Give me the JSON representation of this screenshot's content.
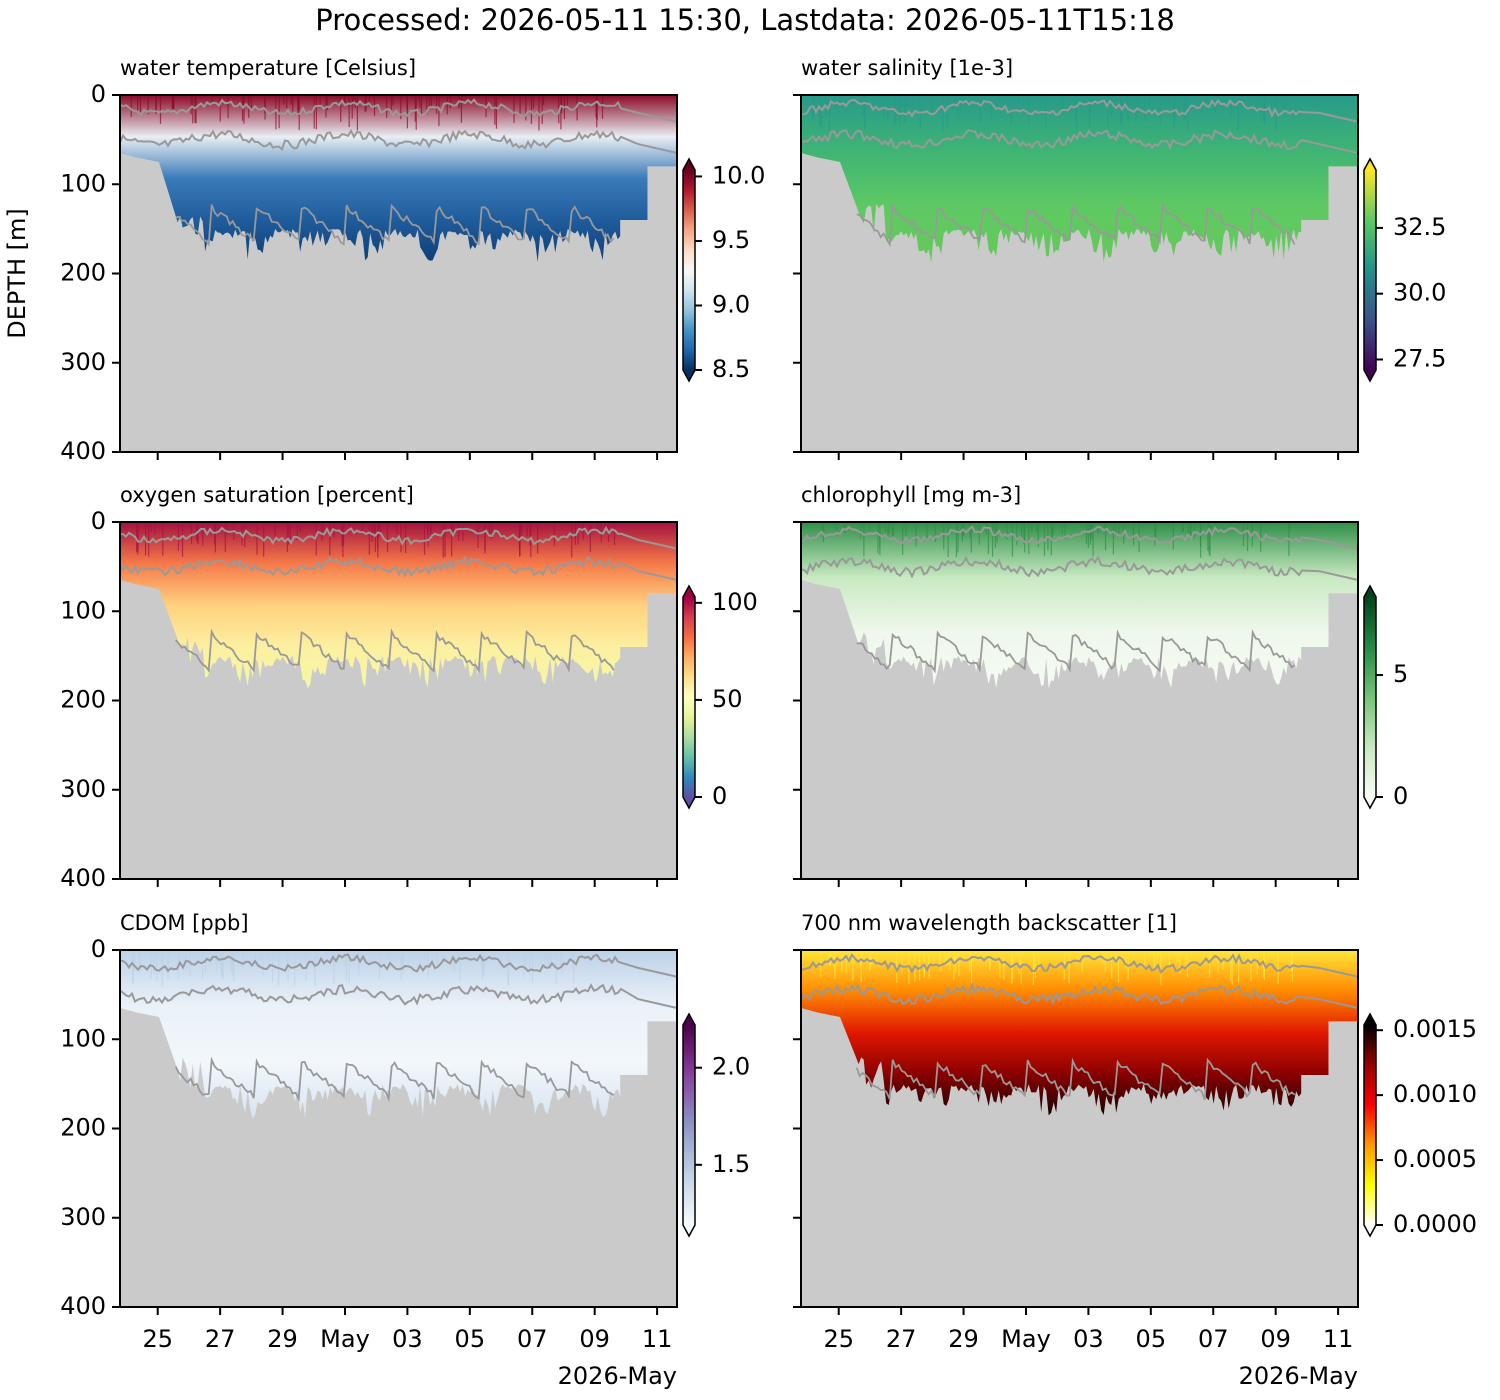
{
  "title": "Processed: 2026-05-11 15:30, Lastdata: 2026-05-11T15:18",
  "chart_data": [
    {
      "type": "heatmap",
      "title": "water temperature [Celsius]",
      "ylabel": "DEPTH [m]",
      "cmap": "RdBu_r",
      "extend": "both",
      "xlim": [
        "2026-04-23T19:00",
        "2026-05-11T15:18"
      ],
      "xticks": [
        "2026-04-25T00:00",
        "2026-04-27T00:00",
        "2026-04-29T00:00",
        "2026-05-01T00:00",
        "2026-05-03T00:00",
        "2026-05-05T00:00",
        "2026-05-07T00:00",
        "2026-05-09T00:00",
        "2026-05-11T00:00"
      ],
      "ylim": [
        0,
        400
      ],
      "y_inverted": true,
      "yticks": [
        0,
        100,
        200,
        300,
        400
      ],
      "yticklabels": true,
      "clim": [
        8.5,
        10.05
      ],
      "cticks": [
        8.5,
        {
          "value": 9,
          "label": "9.0"
        },
        9.5,
        {
          "value": 10,
          "label": "10.0"
        }
      ]
    },
    {
      "type": "heatmap",
      "title": "water salinity [1e-3]",
      "cmap": "viridis",
      "extend": "both",
      "xlim": [
        "2026-04-23T19:00",
        "2026-05-11T15:18"
      ],
      "xticks": [
        "2026-04-25T00:00",
        "2026-04-27T00:00",
        "2026-04-29T00:00",
        "2026-05-01T00:00",
        "2026-05-03T00:00",
        "2026-05-05T00:00",
        "2026-05-07T00:00",
        "2026-05-09T00:00",
        "2026-05-11T00:00"
      ],
      "ylim": [
        0,
        400
      ],
      "y_inverted": true,
      "yticks": [
        0,
        100,
        200,
        300,
        400
      ],
      "yticklabels": false,
      "clim": [
        27.1,
        34.7
      ],
      "cticks": [
        27.5,
        {
          "value": 30,
          "label": "30.0"
        },
        32.5
      ]
    },
    {
      "type": "heatmap",
      "title": "oxygen saturation [percent]",
      "cmap": "Spectral_r",
      "extend": "both",
      "xlim": [
        "2026-04-23T19:00",
        "2026-05-11T15:18"
      ],
      "xticks": [
        "2026-04-25T00:00",
        "2026-04-27T00:00",
        "2026-04-29T00:00",
        "2026-05-01T00:00",
        "2026-05-03T00:00",
        "2026-05-05T00:00",
        "2026-05-07T00:00",
        "2026-05-09T00:00",
        "2026-05-11T00:00"
      ],
      "ylim": [
        0,
        400
      ],
      "y_inverted": true,
      "yticks": [
        0,
        100,
        200,
        300,
        400
      ],
      "yticklabels": true,
      "clim": [
        0,
        103
      ],
      "cticks": [
        0,
        50,
        100
      ]
    },
    {
      "type": "heatmap",
      "title": "chlorophyll [mg m-3]",
      "cmap": "Greens",
      "extend": "both",
      "xlim": [
        "2026-04-23T19:00",
        "2026-05-11T15:18"
      ],
      "xticks": [
        "2026-04-25T00:00",
        "2026-04-27T00:00",
        "2026-04-29T00:00",
        "2026-05-01T00:00",
        "2026-05-03T00:00",
        "2026-05-05T00:00",
        "2026-05-07T00:00",
        "2026-05-09T00:00",
        "2026-05-11T00:00"
      ],
      "ylim": [
        0,
        400
      ],
      "y_inverted": true,
      "yticks": [
        0,
        100,
        200,
        300,
        400
      ],
      "yticklabels": false,
      "clim": [
        0,
        8.2
      ],
      "cticks": [
        0,
        5
      ]
    },
    {
      "type": "heatmap",
      "title": "CDOM [ppb]",
      "cmap": "BuPu",
      "extend": "both",
      "xlim": [
        "2026-04-23T19:00",
        "2026-05-11T15:18"
      ],
      "xticks": [
        {
          "value": "2026-04-25T00:00",
          "label": "25"
        },
        {
          "value": "2026-04-27T00:00",
          "label": "27"
        },
        {
          "value": "2026-04-29T00:00",
          "label": "29"
        },
        {
          "value": "2026-05-01T00:00",
          "label": "May"
        },
        {
          "value": "2026-05-03T00:00",
          "label": "03"
        },
        {
          "value": "2026-05-05T00:00",
          "label": "05"
        },
        {
          "value": "2026-05-07T00:00",
          "label": "07"
        },
        {
          "value": "2026-05-09T00:00",
          "label": "09"
        },
        {
          "value": "2026-05-11T00:00",
          "label": "11"
        }
      ],
      "xoffset_label": "2026-May",
      "ylim": [
        0,
        400
      ],
      "y_inverted": true,
      "yticks": [
        0,
        100,
        200,
        300,
        400
      ],
      "yticklabels": true,
      "clim": [
        1.19,
        2.22
      ],
      "cticks": [
        1.5,
        {
          "value": 2,
          "label": "2.0"
        }
      ]
    },
    {
      "type": "heatmap",
      "title": "700 nm wavelength backscatter [1]",
      "cmap": "hot_r",
      "extend": "both",
      "xlim": [
        "2026-04-23T19:00",
        "2026-05-11T15:18"
      ],
      "xticks": [
        {
          "value": "2026-04-25T00:00",
          "label": "25"
        },
        {
          "value": "2026-04-27T00:00",
          "label": "27"
        },
        {
          "value": "2026-04-29T00:00",
          "label": "29"
        },
        {
          "value": "2026-05-01T00:00",
          "label": "May"
        },
        {
          "value": "2026-05-03T00:00",
          "label": "03"
        },
        {
          "value": "2026-05-05T00:00",
          "label": "05"
        },
        {
          "value": "2026-05-07T00:00",
          "label": "07"
        },
        {
          "value": "2026-05-09T00:00",
          "label": "09"
        },
        {
          "value": "2026-05-11T00:00",
          "label": "11"
        }
      ],
      "xoffset_label": "2026-May",
      "ylim": [
        0,
        400
      ],
      "y_inverted": true,
      "yticks": [
        0,
        100,
        200,
        300,
        400
      ],
      "yticklabels": false,
      "clim": [
        0,
        0.00154
      ],
      "cticks": [
        {
          "value": 0,
          "label": "0.0000"
        },
        0.0005,
        {
          "value": 0.001,
          "label": "0.0010"
        },
        0.0015
      ]
    }
  ]
}
